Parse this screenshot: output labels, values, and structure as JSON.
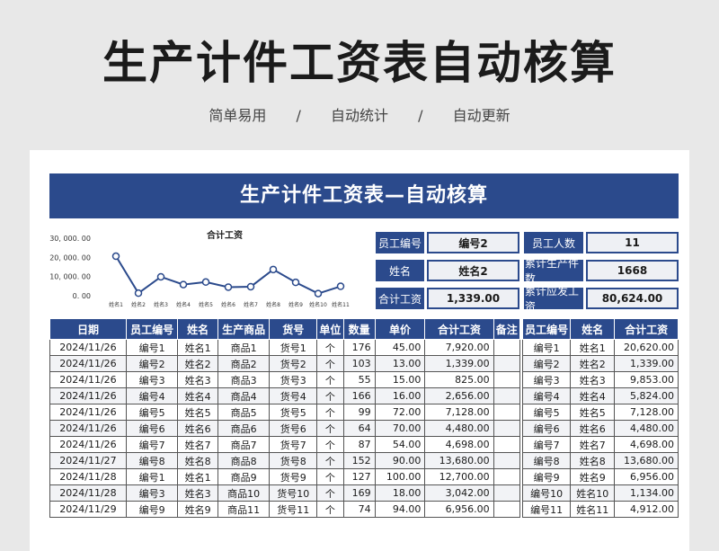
{
  "hero": {
    "title": "生产计件工资表自动核算",
    "tags": [
      "简单易用",
      "/",
      "自动统计",
      "/",
      "自动更新"
    ]
  },
  "sheet": {
    "banner": "生产计件工资表—自动核算",
    "info": {
      "emp_no_label": "员工编号",
      "emp_no_value": "编号2",
      "name_label": "姓名",
      "name_value": "姓名2",
      "wage_label": "合计工资",
      "wage_value": "1,339.00",
      "count_label": "员工人数",
      "count_value": "11",
      "pieces_label": "累计生产件数",
      "pieces_value": "1668",
      "payable_label": "累计应发工资",
      "payable_value": "80,624.00"
    },
    "main_table": {
      "headers": [
        "日期",
        "员工编号",
        "姓名",
        "生产商品",
        "货号",
        "单位",
        "数量",
        "单价",
        "合计工资",
        "备注"
      ],
      "rows": [
        [
          "2024/11/26",
          "编号1",
          "姓名1",
          "商品1",
          "货号1",
          "个",
          "176",
          "45.00",
          "7,920.00",
          ""
        ],
        [
          "2024/11/26",
          "编号2",
          "姓名2",
          "商品2",
          "货号2",
          "个",
          "103",
          "13.00",
          "1,339.00",
          ""
        ],
        [
          "2024/11/26",
          "编号3",
          "姓名3",
          "商品3",
          "货号3",
          "个",
          "55",
          "15.00",
          "825.00",
          ""
        ],
        [
          "2024/11/26",
          "编号4",
          "姓名4",
          "商品4",
          "货号4",
          "个",
          "166",
          "16.00",
          "2,656.00",
          ""
        ],
        [
          "2024/11/26",
          "编号5",
          "姓名5",
          "商品5",
          "货号5",
          "个",
          "99",
          "72.00",
          "7,128.00",
          ""
        ],
        [
          "2024/11/26",
          "编号6",
          "姓名6",
          "商品6",
          "货号6",
          "个",
          "64",
          "70.00",
          "4,480.00",
          ""
        ],
        [
          "2024/11/26",
          "编号7",
          "姓名7",
          "商品7",
          "货号7",
          "个",
          "87",
          "54.00",
          "4,698.00",
          ""
        ],
        [
          "2024/11/27",
          "编号8",
          "姓名8",
          "商品8",
          "货号8",
          "个",
          "152",
          "90.00",
          "13,680.00",
          ""
        ],
        [
          "2024/11/28",
          "编号1",
          "姓名1",
          "商品9",
          "货号9",
          "个",
          "127",
          "100.00",
          "12,700.00",
          ""
        ],
        [
          "2024/11/28",
          "编号3",
          "姓名3",
          "商品10",
          "货号10",
          "个",
          "169",
          "18.00",
          "3,042.00",
          ""
        ],
        [
          "2024/11/29",
          "编号9",
          "姓名9",
          "商品11",
          "货号11",
          "个",
          "74",
          "94.00",
          "6,956.00",
          ""
        ]
      ]
    },
    "summary_table": {
      "headers": [
        "员工编号",
        "姓名",
        "合计工资"
      ],
      "rows": [
        [
          "编号1",
          "姓名1",
          "20,620.00"
        ],
        [
          "编号2",
          "姓名2",
          "1,339.00"
        ],
        [
          "编号3",
          "姓名3",
          "9,853.00"
        ],
        [
          "编号4",
          "姓名4",
          "5,824.00"
        ],
        [
          "编号5",
          "姓名5",
          "7,128.00"
        ],
        [
          "编号6",
          "姓名6",
          "4,480.00"
        ],
        [
          "编号7",
          "姓名7",
          "4,698.00"
        ],
        [
          "编号8",
          "姓名8",
          "13,680.00"
        ],
        [
          "编号9",
          "姓名9",
          "6,956.00"
        ],
        [
          "编号10",
          "姓名10",
          "1,134.00"
        ],
        [
          "编号11",
          "姓名11",
          "4,912.00"
        ]
      ]
    }
  },
  "chart_data": {
    "type": "line",
    "title": "合计工资",
    "categories": [
      "姓名1",
      "姓名2",
      "姓名3",
      "姓名4",
      "姓名5",
      "姓名6",
      "姓名7",
      "姓名8",
      "姓名9",
      "姓名10",
      "姓名11"
    ],
    "values": [
      20620,
      1339,
      9853,
      5824,
      7128,
      4480,
      4698,
      13680,
      6956,
      1134,
      4912
    ],
    "yticks": [
      "30, 000. 00",
      "20, 000. 00",
      "10, 000. 00",
      "0. 00"
    ],
    "ylim": [
      0,
      30000
    ],
    "color": "#2b4a8c",
    "grid": false
  }
}
